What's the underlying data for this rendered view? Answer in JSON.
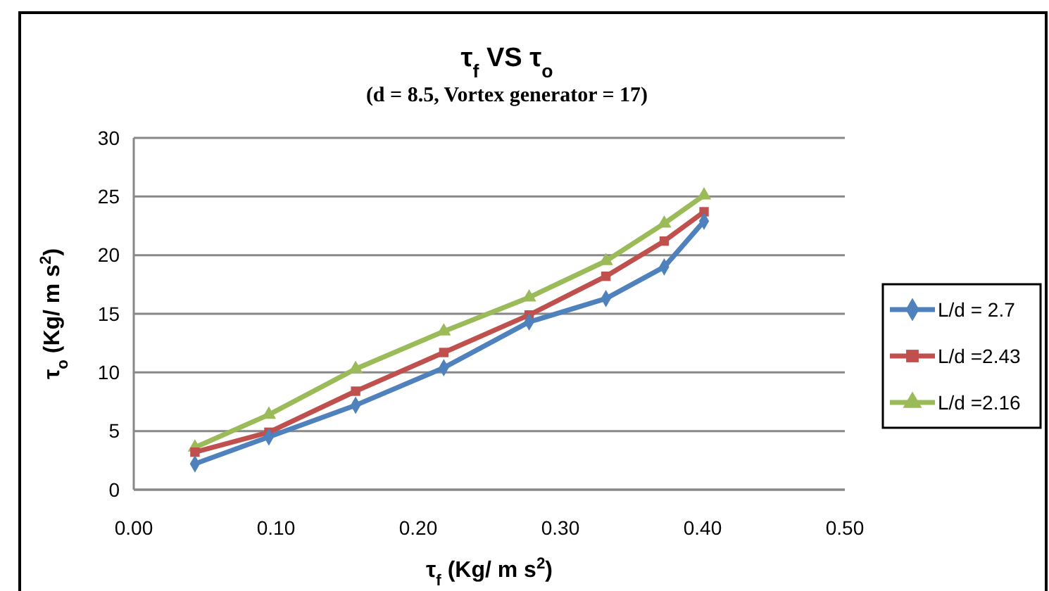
{
  "chart_data": {
    "type": "line",
    "title": "τ$_{f}$ VS τ$_{o}$",
    "subtitle": "(d = 8.5, Vortex generator = 17)",
    "xlabel": "τ$_{f}$ (Kg/ m s$^{2}$)",
    "ylabel": "τ$_{o}$ (Kg/ m s$^{2}$)",
    "x": [
      0.043,
      0.095,
      0.156,
      0.218,
      0.278,
      0.332,
      0.373,
      0.401
    ],
    "series": [
      {
        "name": "L/d = 2.7",
        "color": "#4f81bd",
        "marker": "diamond",
        "values": [
          2.2,
          4.5,
          7.2,
          10.4,
          14.3,
          16.3,
          19.0,
          22.9
        ]
      },
      {
        "name": "L/d =2.43",
        "color": "#c0504d",
        "marker": "square",
        "values": [
          3.2,
          4.9,
          8.4,
          11.7,
          14.9,
          18.2,
          21.2,
          23.7
        ]
      },
      {
        "name": "L/d =2.16",
        "color": "#9bbb59",
        "marker": "triangle",
        "values": [
          3.6,
          6.4,
          10.3,
          13.5,
          16.4,
          19.5,
          22.7,
          25.1
        ]
      }
    ],
    "xlim": [
      0,
      0.5
    ],
    "xticks": [
      {
        "value": 0,
        "label": "0.00"
      },
      {
        "value": 0.1,
        "label": "0.10"
      },
      {
        "value": 0.2,
        "label": "0.20"
      },
      {
        "value": 0.3,
        "label": "0.30"
      },
      {
        "value": 0.4,
        "label": "0.40"
      },
      {
        "value": 0.5,
        "label": "0.50"
      }
    ],
    "ylim": [
      0,
      30
    ],
    "yticks": [
      0,
      5,
      10,
      15,
      20,
      25,
      30
    ],
    "grid": "y",
    "legend": "right",
    "line_style": "solid"
  }
}
